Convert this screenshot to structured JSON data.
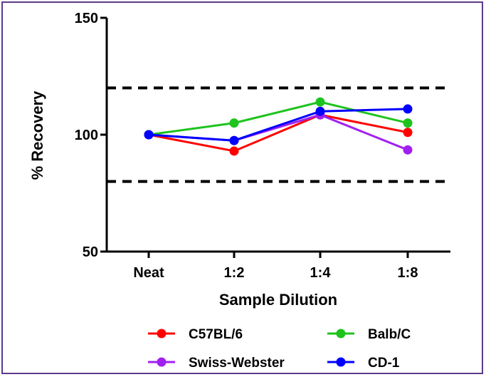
{
  "chart_data": {
    "type": "line",
    "categories": [
      "Neat",
      "1:2",
      "1:4",
      "1:8"
    ],
    "xlabel": "Sample Dilution",
    "ylabel": "% Recovery",
    "ylim": [
      50,
      150
    ],
    "yticks": [
      50,
      100,
      150
    ],
    "reference_lines": [
      120,
      80
    ],
    "grid": false,
    "legend_position": "bottom",
    "series": [
      {
        "name": "C57BL/6",
        "color": "#ff0000",
        "values": [
          100,
          93,
          108.5,
          101
        ]
      },
      {
        "name": "Balb/C",
        "color": "#1ec31e",
        "values": [
          100,
          105,
          114,
          105
        ]
      },
      {
        "name": "Swiss-Webster",
        "color": "#a020f0",
        "values": [
          100,
          97.5,
          108.5,
          93.5
        ]
      },
      {
        "name": "CD-1",
        "color": "#0000ff",
        "values": [
          100,
          97.5,
          110,
          111
        ]
      }
    ]
  },
  "frame_color": "#5b3b8c"
}
